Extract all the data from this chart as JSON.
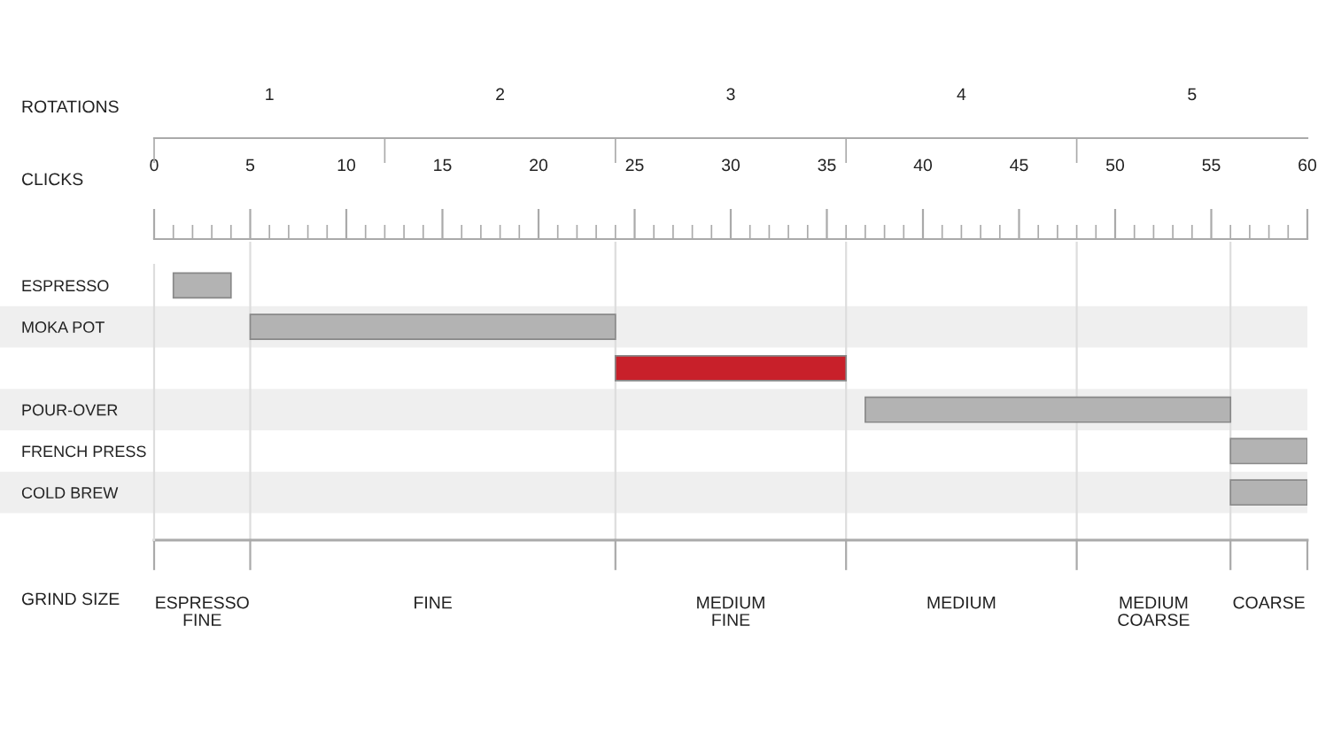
{
  "chart_data": {
    "type": "bar",
    "orientation": "horizontal",
    "categories": [
      "ESPRESSO",
      "MOKA POT",
      null,
      "POUR-OVER",
      "FRENCH PRESS",
      "COLD BREW"
    ],
    "base": [
      1,
      5,
      24,
      37,
      56,
      56
    ],
    "values": [
      3,
      19,
      12,
      19,
      4,
      4
    ],
    "colors": [
      "#b3b3b3",
      "#b3b3b3",
      "#c8202a",
      "#b3b3b3",
      "#b3b3b3",
      "#b3b3b3"
    ],
    "xlabel": "CLICKS",
    "xlim": [
      0,
      60
    ],
    "xticks": [
      0,
      {
        "value": 1,
        "label": null
      },
      {
        "value": 2,
        "label": null
      },
      {
        "value": 3,
        "label": null
      },
      {
        "value": 4,
        "label": null
      },
      5,
      {
        "value": 6,
        "label": null
      },
      {
        "value": 7,
        "label": null
      },
      {
        "value": 8,
        "label": null
      },
      {
        "value": 9,
        "label": null
      },
      10,
      {
        "value": 11,
        "label": null
      },
      {
        "value": 12,
        "label": null
      },
      {
        "value": 13,
        "label": null
      },
      {
        "value": 14,
        "label": null
      },
      15,
      {
        "value": 16,
        "label": null
      },
      {
        "value": 17,
        "label": null
      },
      {
        "value": 18,
        "label": null
      },
      {
        "value": 19,
        "label": null
      },
      20,
      {
        "value": 21,
        "label": null
      },
      {
        "value": 22,
        "label": null
      },
      {
        "value": 23,
        "label": null
      },
      {
        "value": 24,
        "label": null
      },
      25,
      {
        "value": 26,
        "label": null
      },
      {
        "value": 27,
        "label": null
      },
      {
        "value": 28,
        "label": null
      },
      {
        "value": 29,
        "label": null
      },
      30,
      {
        "value": 31,
        "label": null
      },
      {
        "value": 32,
        "label": null
      },
      {
        "value": 33,
        "label": null
      },
      {
        "value": 34,
        "label": null
      },
      35,
      {
        "value": 36,
        "label": null
      },
      {
        "value": 37,
        "label": null
      },
      {
        "value": 38,
        "label": null
      },
      {
        "value": 39,
        "label": null
      },
      40,
      {
        "value": 41,
        "label": null
      },
      {
        "value": 42,
        "label": null
      },
      {
        "value": 43,
        "label": null
      },
      {
        "value": 44,
        "label": null
      },
      45,
      {
        "value": 46,
        "label": null
      },
      {
        "value": 47,
        "label": null
      },
      {
        "value": 48,
        "label": null
      },
      {
        "value": 49,
        "label": null
      },
      50,
      {
        "value": 51,
        "label": null
      },
      {
        "value": 52,
        "label": null
      },
      {
        "value": 53,
        "label": null
      },
      {
        "value": 54,
        "label": null
      },
      55,
      {
        "value": 56,
        "label": null
      },
      {
        "value": 57,
        "label": null
      },
      {
        "value": 58,
        "label": null
      },
      {
        "value": 59,
        "label": null
      },
      60
    ],
    "x2label": "ROTATIONS",
    "x2lim": [
      0.5,
      5.5
    ],
    "x2ticks": [
      {
        "value": 0.5,
        "label": null
      },
      1,
      {
        "value": 1.5,
        "label": null
      },
      2,
      {
        "value": 2.5,
        "label": null
      },
      3,
      {
        "value": 3.5,
        "label": null
      },
      4,
      {
        "value": 4.5,
        "label": null
      },
      5
    ],
    "ref_lines": [
      {
        "axis": "x",
        "value": 5,
        "color": "#dddddd"
      },
      {
        "axis": "x",
        "value": 24,
        "color": "#dddddd"
      },
      {
        "axis": "x",
        "value": 36,
        "color": "#dddddd"
      },
      {
        "axis": "x",
        "value": 48,
        "color": "#dddddd"
      },
      {
        "axis": "x",
        "value": 56,
        "color": "#dddddd"
      }
    ],
    "annotations": [
      "GRIND SIZE",
      "ESPRESSO\nFINE",
      "FINE",
      "MEDIUM\nFINE",
      "MEDIUM",
      "MEDIUM\nCOARSE",
      "COARSE"
    ]
  }
}
